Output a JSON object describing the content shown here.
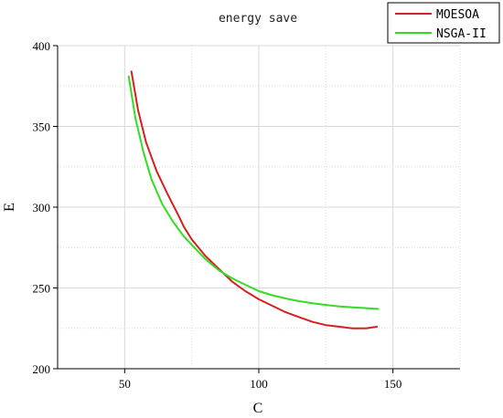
{
  "chart_data": {
    "type": "line",
    "title": "energy save",
    "xlabel": "C",
    "ylabel": "E",
    "xlim": [
      25,
      175
    ],
    "ylim": [
      200,
      400
    ],
    "xticks": [
      50,
      100,
      150
    ],
    "yticks": [
      200,
      250,
      300,
      350,
      400
    ],
    "grid": true,
    "legend_position": "top-right",
    "series": [
      {
        "name": "MOESOA",
        "color": "#d42020",
        "x": [
          52.5,
          55,
          58,
          62,
          66,
          70,
          72,
          75,
          80,
          85,
          90,
          95,
          100,
          105,
          110,
          115,
          120,
          125,
          130,
          135,
          140,
          144
        ],
        "y": [
          384,
          360,
          340,
          322,
          308,
          295,
          288,
          280,
          270,
          262,
          254,
          248,
          243,
          239,
          235,
          232,
          229,
          227,
          226,
          225,
          225,
          226
        ]
      },
      {
        "name": "NSGA-II",
        "color": "#33dd22",
        "x": [
          51.5,
          54,
          57,
          60,
          64,
          68,
          72,
          76,
          80,
          85,
          90,
          95,
          100,
          105,
          110,
          115,
          120,
          125,
          130,
          135,
          140,
          144.5
        ],
        "y": [
          381,
          355,
          334,
          317,
          302,
          291,
          282,
          275,
          268,
          261,
          256,
          252,
          248,
          245.5,
          243.5,
          241.8,
          240.5,
          239.5,
          238.6,
          238,
          237.5,
          237
        ]
      }
    ]
  }
}
